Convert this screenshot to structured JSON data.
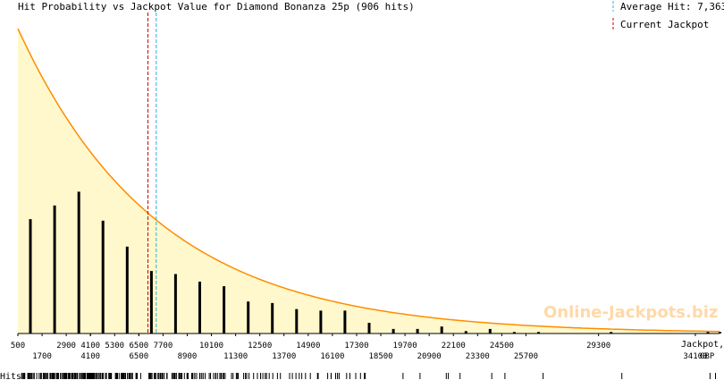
{
  "chart_data": {
    "type": "bar",
    "title": "Hit Probability vs Jackpot Value for Diamond Bonanza 25p (906 hits)",
    "xlabel": "Jackpot,",
    "xunit": "GBP",
    "rug_label": "Hits",
    "watermark": "Online-Jackpots.biz",
    "legend_position": "top-right",
    "legend": [
      {
        "key": "average",
        "label": "Average Hit: 7,363",
        "color": "#33aadd"
      },
      {
        "key": "current",
        "label": "Current Jackpot",
        "color": "#cc0000"
      }
    ],
    "average_hit": 7363,
    "current_jackpot": 6950,
    "xlim": [
      500,
      35300
    ],
    "ylim": [
      0,
      100
    ],
    "ticks_top": [
      500,
      2900,
      4100,
      5300,
      6500,
      7700,
      10100,
      12500,
      14900,
      17300,
      19700,
      22100,
      24500,
      29300
    ],
    "ticks_top_labels": [
      "500",
      "2900",
      "4100",
      "5300",
      "6500",
      "7700",
      "10100",
      "12500",
      "14900",
      "17300",
      "19700",
      "22100",
      "24500",
      "29300"
    ],
    "ticks_bottom": [
      1700,
      4100,
      6500,
      8900,
      11300,
      13700,
      16100,
      18500,
      20900,
      23300,
      25700,
      34100
    ],
    "ticks_bottom_labels": [
      "1700",
      "4100",
      "6500",
      "8900",
      "11300",
      "13700",
      "16100",
      "18500",
      "20900",
      "23300",
      "25700",
      "34100"
    ],
    "x": [
      1100,
      2300,
      3500,
      4700,
      5900,
      7100,
      8300,
      9500,
      10700,
      11900,
      13100,
      14300,
      15500,
      16700,
      17900,
      19100,
      20300,
      21500,
      22700,
      23900,
      25100,
      26300,
      29900,
      34700,
      35300
    ],
    "values": [
      37.5,
      42,
      46.5,
      37,
      28.5,
      20.5,
      19.5,
      17,
      15.5,
      10.5,
      10,
      8,
      7.5,
      7.5,
      3.5,
      1.5,
      1.5,
      2.3,
      0.8,
      1.5,
      0.5,
      0.5,
      0.5,
      0.5,
      0.5
    ],
    "fit_curve": {
      "type": "exponential",
      "y0": 100,
      "decay_per_1000": 0.144
    },
    "colors": {
      "bars": "#000000",
      "curve": "#ff8c00",
      "fill": "#fff8cc",
      "axis": "#000000"
    }
  }
}
